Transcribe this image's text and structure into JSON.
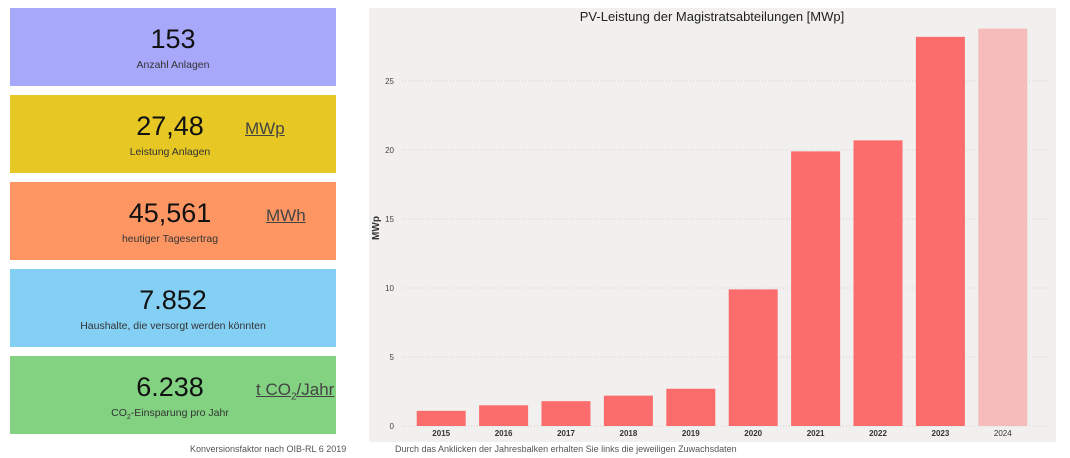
{
  "cards": [
    {
      "value": "153",
      "label": "Anzahl Anlagen",
      "color": "#a8a8fb"
    },
    {
      "value": "27,48",
      "label": "Leistung Anlagen",
      "unit": "MWp",
      "color": "#e6c724"
    },
    {
      "value": "45,561",
      "label": "heutiger Tagesertrag",
      "unit": "MWh",
      "color": "#fe9664"
    },
    {
      "value": "7.852",
      "label": "Haushalte, die versorgt werden könnten",
      "color": "#84d0f5"
    },
    {
      "value": "6.238",
      "label_prefix": "CO",
      "label_sub": "2",
      "label_suffix": "-Einsparung pro Jahr",
      "unit_prefix": "t CO",
      "unit_sub": "2",
      "unit_suffix": "/Jahr",
      "color": "#82d282"
    }
  ],
  "footnote_left": "Konversionsfaktor nach OIB-RL 6 2019",
  "footnote_right": "Durch das Anklicken der Jahresbalken erhalten Sie links die jeweiligen Zuwachsdaten",
  "chart_data": {
    "type": "bar",
    "title": "PV-Leistung der Magistratsabteilungen [MWp]",
    "ylabel": "MWp",
    "xlabel": "",
    "categories": [
      "2015",
      "2016",
      "2017",
      "2018",
      "2019",
      "2020",
      "2021",
      "2022",
      "2023",
      "2024"
    ],
    "values": [
      1.1,
      1.5,
      1.8,
      2.2,
      2.7,
      9.9,
      19.9,
      20.7,
      28.2,
      28.8
    ],
    "yticks": [
      0,
      5,
      10,
      15,
      20,
      25
    ],
    "ylim": [
      0,
      29.5
    ],
    "grid": true,
    "bar_color": "#fb6d6d",
    "highlight_color": "#f6bbbb",
    "faded_category": "2024"
  }
}
